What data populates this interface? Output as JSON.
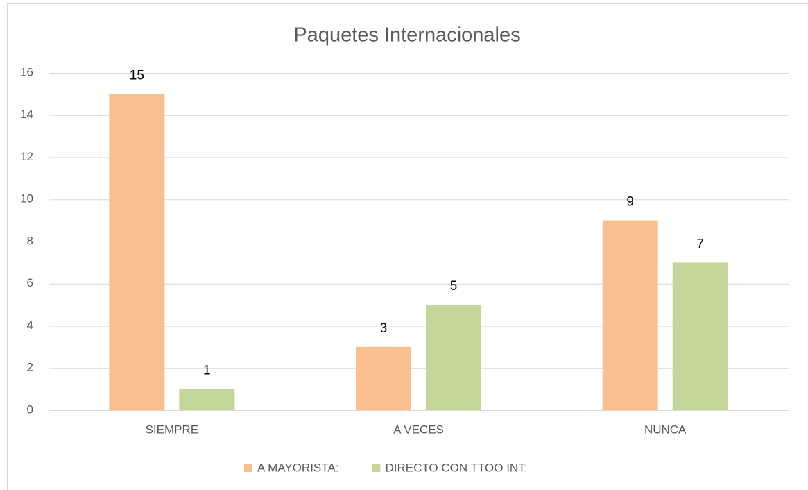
{
  "chart_data": {
    "type": "bar",
    "title": "Paquetes Internacionales",
    "categories": [
      "SIEMPRE",
      "A VECES",
      "NUNCA"
    ],
    "series": [
      {
        "name": "A MAYORISTA:",
        "color": "#f9bf8f",
        "values": [
          15,
          3,
          9
        ]
      },
      {
        "name": "DIRECTO CON TTOO INT:",
        "color": "#c4d79b",
        "values": [
          1,
          5,
          7
        ]
      }
    ],
    "ylim": [
      0,
      16
    ],
    "yticks": [
      0,
      2,
      4,
      6,
      8,
      10,
      12,
      14,
      16
    ],
    "grid": true,
    "legend": "bottom"
  }
}
